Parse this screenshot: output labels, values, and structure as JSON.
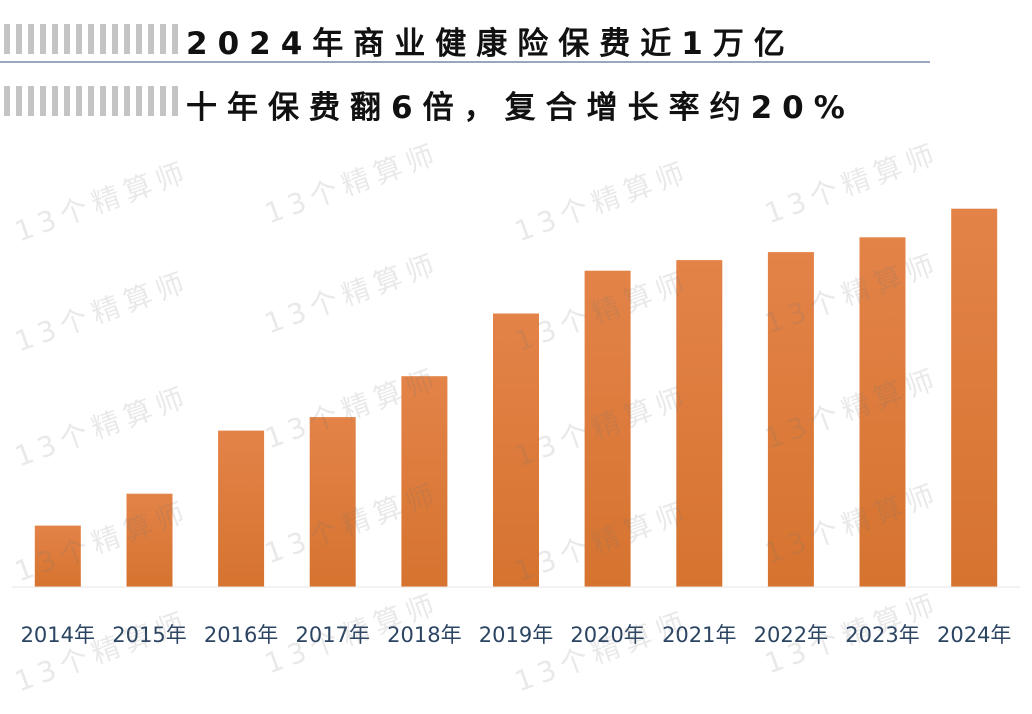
{
  "title_lines": [
    "2024年商业健康险保费近1万亿",
    "十年保费翻6倍，复合增长率约20%"
  ],
  "watermark": "13个精算师",
  "colors": {
    "bar": "#e38348",
    "bar_dark": "#d6732f",
    "axis": "#e6e6e6",
    "label": "#2b4462"
  },
  "chart_data": {
    "type": "bar",
    "title": "2024年商业健康险保费近1万亿",
    "subtitle": "十年保费翻6倍，复合增长率约20%",
    "xlabel": "",
    "ylabel": "",
    "categories": [
      "2014年",
      "2015年",
      "2016年",
      "2017年",
      "2018年",
      "2019年",
      "2020年",
      "2021年",
      "2022年",
      "2023年",
      "2024年"
    ],
    "values": [
      1587,
      2410,
      4042,
      4389,
      5448,
      7066,
      8173,
      8447,
      8653,
      9035,
      9774
    ],
    "ylim": [
      0,
      10000
    ],
    "grid": false,
    "legend": "none"
  }
}
